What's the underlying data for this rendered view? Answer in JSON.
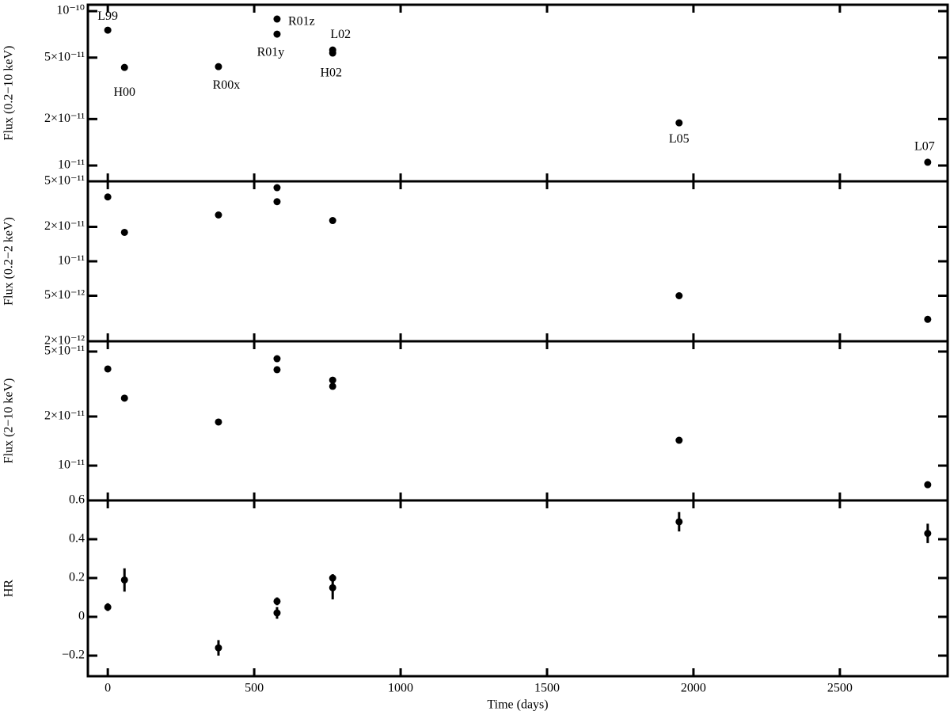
{
  "chart_data": [
    {
      "type": "scatter",
      "ylabel": "Flux (0.2−10 keV)",
      "log_y": true,
      "xlim": [
        -68,
        2868
      ],
      "xticks": [
        0,
        500,
        1000,
        1500,
        2000,
        2500
      ],
      "ylim": [
        7.9e-12,
        1.1e-10
      ],
      "yticks": [
        {
          "value": 1e-10,
          "label": "10⁻¹⁰"
        },
        {
          "value": 5e-11,
          "label": "5×10⁻¹¹"
        },
        {
          "value": 2e-11,
          "label": "2×10⁻¹¹"
        },
        {
          "value": 1e-11,
          "label": "10⁻¹¹"
        }
      ],
      "series": [
        {
          "color": "#000000",
          "x": [
            0,
            57,
            378,
            578,
            578,
            768,
            768,
            1951,
            2800
          ],
          "values": [
            7.53e-11,
            4.32e-11,
            4.37e-11,
            7.1e-11,
            8.89e-11,
            5.6e-11,
            5.35e-11,
            1.89e-11,
            1.05e-11
          ],
          "point_labels": [
            "L99",
            "H00",
            "R00x",
            "R01y",
            "R01z",
            "L02",
            "H02",
            "L05",
            "L07"
          ]
        }
      ]
    },
    {
      "type": "scatter",
      "ylabel": "Flux (0.2−2 keV)",
      "log_y": true,
      "xlim": [
        -68,
        2868
      ],
      "xticks": [
        0,
        500,
        1000,
        1500,
        2000,
        2500
      ],
      "ylim": [
        2e-12,
        5e-11
      ],
      "yticks": [
        {
          "value": 5e-11,
          "label": "5×10⁻¹¹"
        },
        {
          "value": 2e-11,
          "label": "2×10⁻¹¹"
        },
        {
          "value": 1e-11,
          "label": "10⁻¹¹"
        },
        {
          "value": 5e-12,
          "label": "5×10⁻¹²"
        },
        {
          "value": 2e-12,
          "label": "2×10⁻¹²"
        }
      ],
      "series": [
        {
          "color": "#000000",
          "x": [
            0,
            57,
            378,
            578,
            578,
            768,
            1951,
            2800
          ],
          "values": [
            3.65e-11,
            1.79e-11,
            2.54e-11,
            4.4e-11,
            3.32e-11,
            2.27e-11,
            5e-12,
            3.11e-12
          ]
        }
      ]
    },
    {
      "type": "scatter",
      "ylabel": "Flux (2−10 keV)",
      "log_y": true,
      "xlim": [
        -68,
        2868
      ],
      "xticks": [
        0,
        500,
        1000,
        1500,
        2000,
        2500
      ],
      "ylim": [
        6.12e-12,
        5.78e-11
      ],
      "yticks": [
        {
          "value": 5e-11,
          "label": "5×10⁻¹¹"
        },
        {
          "value": 2e-11,
          "label": "2×10⁻¹¹"
        },
        {
          "value": 1e-11,
          "label": "10⁻¹¹"
        }
      ],
      "series": [
        {
          "color": "#000000",
          "x": [
            0,
            57,
            378,
            578,
            578,
            768,
            768,
            1951,
            2800
          ],
          "values": [
            3.91e-11,
            2.59e-11,
            1.85e-11,
            4.52e-11,
            3.87e-11,
            3.34e-11,
            3.06e-11,
            1.43e-11,
            7.64e-12
          ]
        }
      ]
    },
    {
      "type": "scatter",
      "ylabel": "HR",
      "xlabel": "Time (days)",
      "log_y": false,
      "xlim": [
        -68,
        2868
      ],
      "xticks": [
        0,
        500,
        1000,
        1500,
        2000,
        2500
      ],
      "ylim": [
        -0.306,
        0.6
      ],
      "yticks": [
        0.6,
        0.4,
        0.2,
        0,
        {
          "value": -0.2,
          "label": "−0.2"
        }
      ],
      "series": [
        {
          "color": "#000000",
          "x": [
            0,
            57,
            378,
            578,
            578,
            768,
            768,
            1951,
            2800
          ],
          "values": [
            0.05,
            0.19,
            -0.16,
            0.08,
            0.02,
            0.15,
            0.2,
            0.49,
            0.43
          ],
          "errors": [
            0.02,
            0.06,
            0.04,
            0.02,
            0.03,
            0.06,
            0.02,
            0.05,
            0.05
          ]
        }
      ]
    }
  ]
}
